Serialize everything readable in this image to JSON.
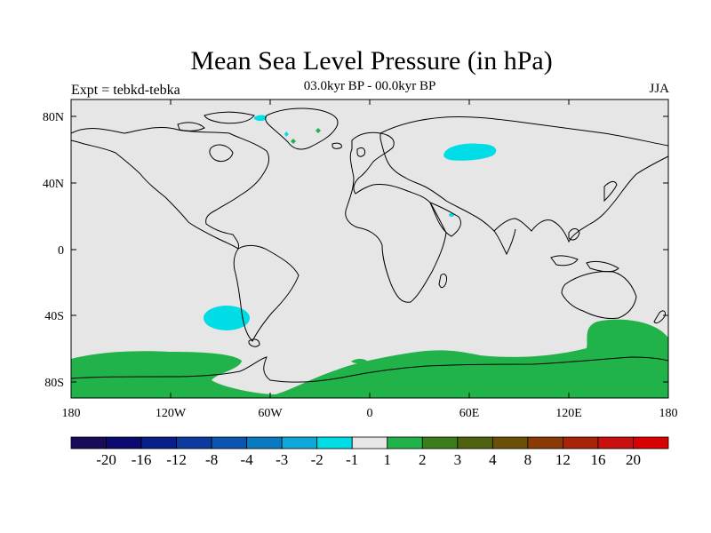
{
  "title": "Mean Sea Level Pressure (in hPa)",
  "subtitle": "03.0kyr BP - 00.0kyr BP",
  "left_label": "Expt = tebkd-tebka",
  "right_label": "JJA",
  "lat_ticks": [
    "80N",
    "40N",
    "0",
    "40S",
    "80S"
  ],
  "lon_ticks": [
    "180",
    "120W",
    "60W",
    "0",
    "60E",
    "120E",
    "180"
  ],
  "colorbar": {
    "labels": [
      "-20",
      "-16",
      "-12",
      "-8",
      "-4",
      "-3",
      "-2",
      "-1",
      "1",
      "2",
      "3",
      "4",
      "8",
      "12",
      "16",
      "20"
    ],
    "colors": [
      "#1a0a5a",
      "#0a0a70",
      "#081f8a",
      "#0c3a9e",
      "#0b55b0",
      "#0a7ac0",
      "#10a8d8",
      "#00dde6",
      "#e6e6e6",
      "#22b24a",
      "#3a7d1a",
      "#4f6210",
      "#6a4f08",
      "#8a3a06",
      "#a82408",
      "#c81010",
      "#d80000"
    ]
  },
  "colors": {
    "background_field": "#e6e6e6",
    "negative_anomaly": "#00dde6",
    "positive_anomaly": "#22b24a"
  }
}
